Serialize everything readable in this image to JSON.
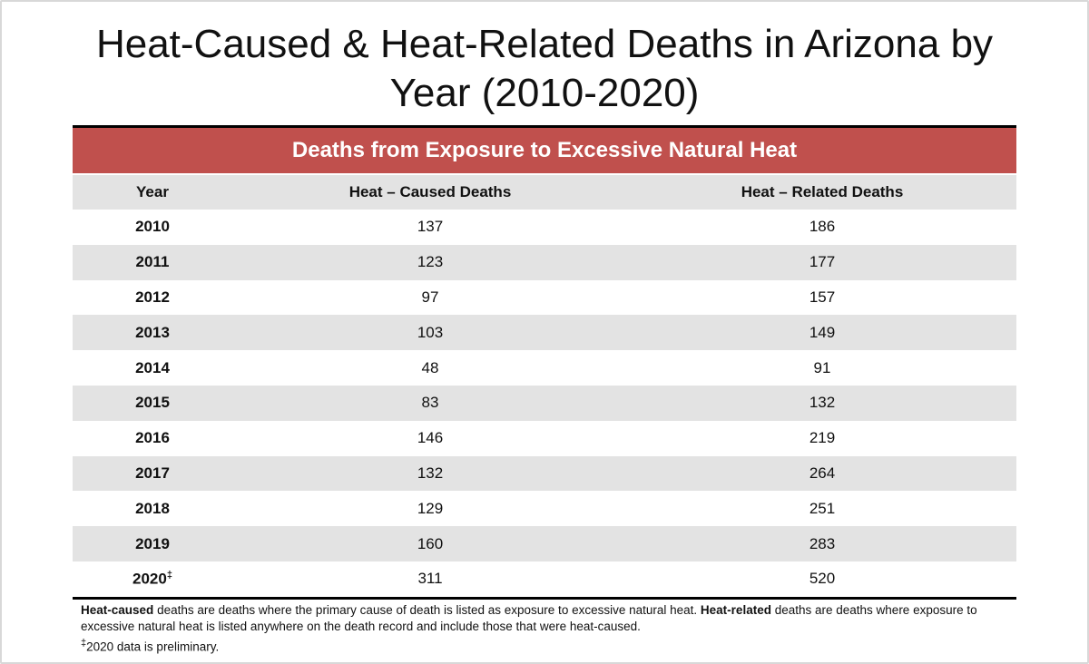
{
  "header": {
    "title": "Heat-Caused & Heat-Related Deaths in Arizona by Year (2010-2020)"
  },
  "table": {
    "banner": "Deaths from Exposure to Excessive Natural Heat",
    "columns": [
      "Year",
      "Heat – Caused Deaths",
      "Heat – Related Deaths"
    ],
    "rows": [
      [
        "2010",
        137,
        186
      ],
      [
        "2011",
        123,
        177
      ],
      [
        "2012",
        97,
        157
      ],
      [
        "2013",
        103,
        149
      ],
      [
        "2014",
        48,
        91
      ],
      [
        "2015",
        83,
        132
      ],
      [
        "2016",
        146,
        219
      ],
      [
        "2017",
        132,
        264
      ],
      [
        "2018",
        129,
        251
      ],
      [
        "2019",
        160,
        283
      ],
      [
        "2020",
        311,
        520
      ]
    ],
    "row_marks": {
      "10": "‡"
    }
  },
  "footnote": {
    "caused_term": "Heat-caused",
    "caused_text": "deaths are deaths where the primary cause of death is listed as exposure to excessive natural heat.",
    "related_term": "Heat-related",
    "related_text": "deaths are deaths where exposure to excessive natural heat is listed anywhere on the death record and include those that were heat-caused.",
    "preliminary_mark": "‡",
    "preliminary_text": "2020 data is preliminary."
  }
}
